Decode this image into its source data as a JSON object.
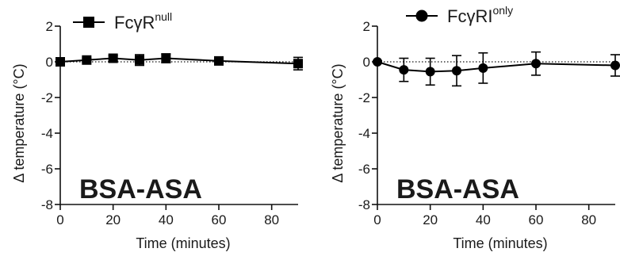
{
  "chart_data": [
    {
      "type": "line",
      "title": "",
      "xlabel": "Time (minutes)",
      "ylabel": "Δ temperature (°C)",
      "xlim": [
        0,
        90
      ],
      "ylim": [
        -8,
        2
      ],
      "xticks": [
        0,
        20,
        40,
        60,
        80
      ],
      "yticks": [
        2,
        0,
        -2,
        -4,
        -6,
        -8
      ],
      "reference_line": {
        "y": 0,
        "style": "dotted"
      },
      "annotation": "BSA-ASA",
      "legend": {
        "position": "top-left",
        "marker": "square"
      },
      "series": [
        {
          "name_main": "FcγR",
          "name_sup": "null",
          "x": [
            0,
            10,
            20,
            30,
            40,
            60,
            90
          ],
          "y": [
            0.0,
            0.1,
            0.2,
            0.1,
            0.2,
            0.05,
            -0.1
          ],
          "err": [
            0.05,
            0.1,
            0.15,
            0.3,
            0.25,
            0.1,
            0.35
          ]
        }
      ]
    },
    {
      "type": "line",
      "title": "",
      "xlabel": "Time (minutes)",
      "ylabel": "Δ temperature (°C)",
      "xlim": [
        0,
        90
      ],
      "ylim": [
        -8,
        2
      ],
      "xticks": [
        0,
        20,
        40,
        60,
        80
      ],
      "yticks": [
        2,
        0,
        -2,
        -4,
        -6,
        -8
      ],
      "reference_line": {
        "y": 0,
        "style": "dotted"
      },
      "annotation": "BSA-ASA",
      "legend": {
        "position": "top-left",
        "marker": "circle"
      },
      "series": [
        {
          "name_main": "FcγRI",
          "name_sup": "only",
          "x": [
            0,
            10,
            20,
            30,
            40,
            60,
            90
          ],
          "y": [
            0.0,
            -0.45,
            -0.55,
            -0.5,
            -0.35,
            -0.1,
            -0.2
          ],
          "err": [
            0.05,
            0.65,
            0.75,
            0.85,
            0.85,
            0.65,
            0.6
          ]
        }
      ]
    }
  ]
}
